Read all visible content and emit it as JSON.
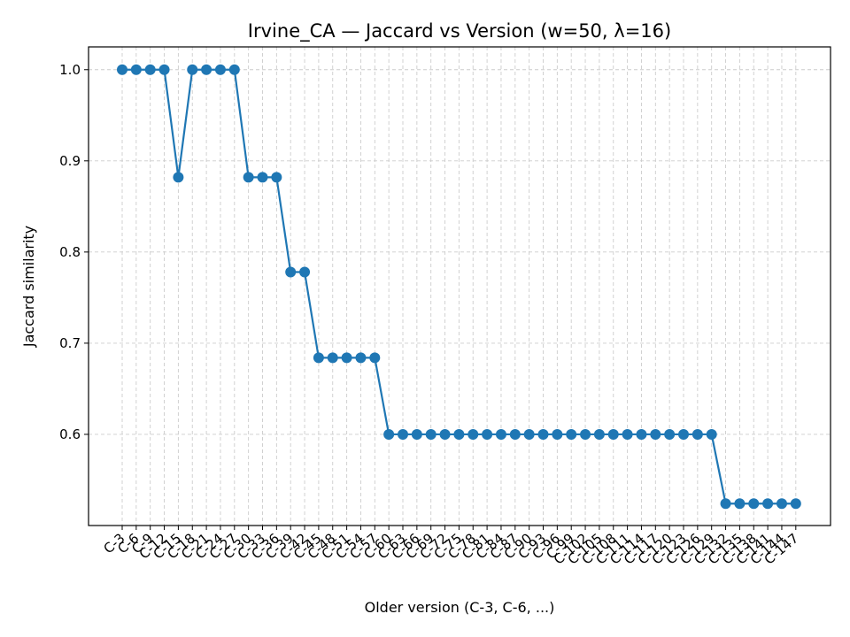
{
  "chart_data": {
    "type": "line",
    "title": "Irvine_CA — Jaccard vs Version (w=50, λ=16)",
    "xlabel": "Older version (C-3, C-6, ...)",
    "ylabel": "Jaccard similarity",
    "ylim": [
      0.5,
      1.025
    ],
    "yticks": [
      "0.6",
      "0.7",
      "0.8",
      "0.9",
      "1.0"
    ],
    "grid": true,
    "color": "#1f77b4",
    "categories": [
      "C-3",
      "C-6",
      "C-9",
      "C-12",
      "C-15",
      "C-18",
      "C-21",
      "C-24",
      "C-27",
      "C-30",
      "C-33",
      "C-36",
      "C-39",
      "C-42",
      "C-45",
      "C-48",
      "C-51",
      "C-54",
      "C-57",
      "C-60",
      "C-63",
      "C-66",
      "C-69",
      "C-72",
      "C-75",
      "C-78",
      "C-81",
      "C-84",
      "C-87",
      "C-90",
      "C-93",
      "C-96",
      "C-99",
      "C-102",
      "C-105",
      "C-108",
      "C-111",
      "C-114",
      "C-117",
      "C-120",
      "C-123",
      "C-126",
      "C-129",
      "C-132",
      "C-135",
      "C-138",
      "C-141",
      "C-144",
      "C-147"
    ],
    "values": [
      1.0,
      1.0,
      1.0,
      1.0,
      0.882,
      1.0,
      1.0,
      1.0,
      1.0,
      0.882,
      0.882,
      0.882,
      0.778,
      0.778,
      0.684,
      0.684,
      0.684,
      0.684,
      0.684,
      0.6,
      0.6,
      0.6,
      0.6,
      0.6,
      0.6,
      0.6,
      0.6,
      0.6,
      0.6,
      0.6,
      0.6,
      0.6,
      0.6,
      0.6,
      0.6,
      0.6,
      0.6,
      0.6,
      0.6,
      0.6,
      0.6,
      0.6,
      0.6,
      0.524,
      0.524,
      0.524,
      0.524,
      0.524,
      0.524
    ]
  }
}
